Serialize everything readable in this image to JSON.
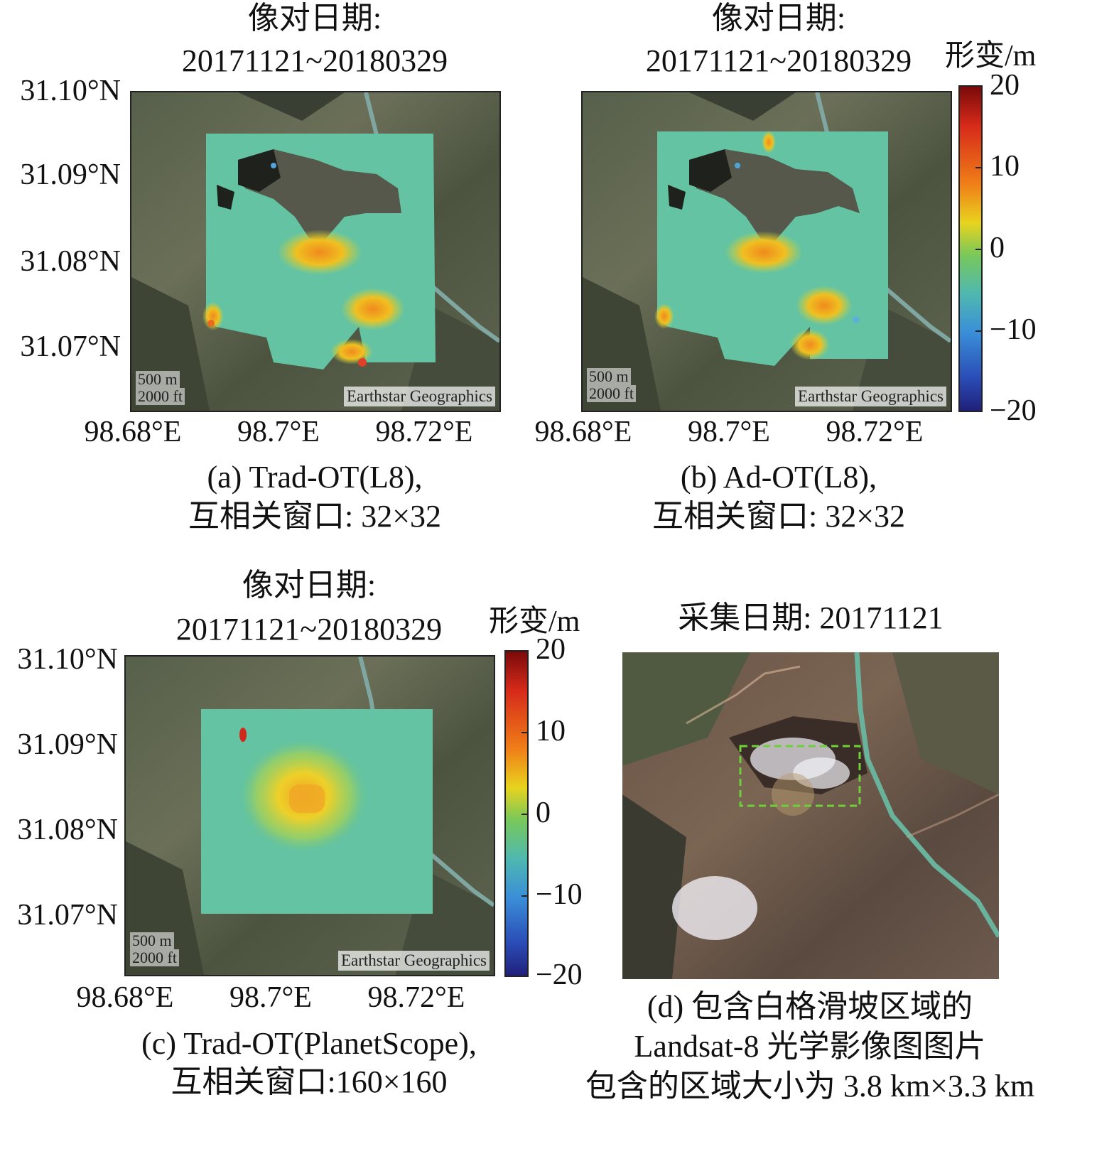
{
  "panels": [
    {
      "id": "a",
      "title_line1": "像对日期:",
      "title_line2": "20171121~20180329",
      "caption_line1": "(a) Trad-OT(L8),",
      "caption_line2": "互相关窗口: 32×32"
    },
    {
      "id": "b",
      "title_line1": "像对日期:",
      "title_line2": "20171121~20180329",
      "caption_line1": "(b) Ad-OT(L8),",
      "caption_line2": "互相关窗口: 32×32"
    },
    {
      "id": "c",
      "title_line1": "像对日期:",
      "title_line2": "20171121~20180329",
      "caption_line1": "(c) Trad-OT(PlanetScope),",
      "caption_line2": "互相关窗口:160×160"
    },
    {
      "id": "d",
      "title_line1": "采集日期: 20171121",
      "caption_line1": "(d) 包含白格滑坡区域的",
      "caption_line2": "Landsat-8 光学影像图图片",
      "caption_line3": "包含的区域大小为 3.8 km×3.3 km"
    }
  ],
  "axes": {
    "lat_ticks": [
      "31.10°N",
      "31.09°N",
      "31.08°N",
      "31.07°N"
    ],
    "lon_ticks": [
      "98.68°E",
      "98.7°E",
      "98.72°E"
    ]
  },
  "map_overlay": {
    "scale_m": "500 m",
    "scale_ft": "2000 ft",
    "attribution": "Earthstar Geographics"
  },
  "colorbar": {
    "label": "形变/m",
    "ticks": [
      "20",
      "10",
      "0",
      "−10",
      "−20"
    ],
    "range": [
      -20,
      20
    ],
    "colormap": "jet"
  },
  "colors": {
    "deformation_base": "#63c3a2",
    "roi_box": "#6fcf3a"
  }
}
